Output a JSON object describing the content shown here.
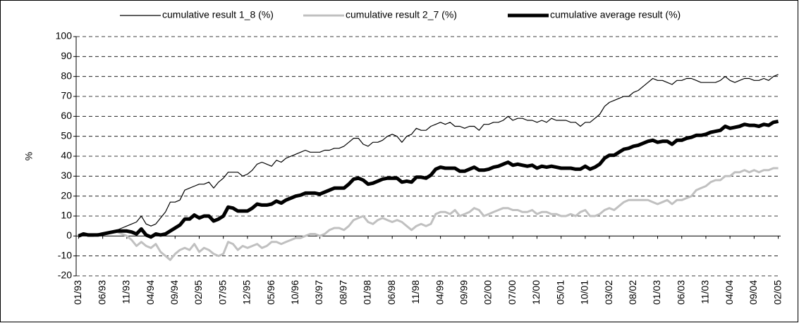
{
  "chart_data": {
    "type": "line",
    "y_label": "%",
    "categories": [
      "01/93",
      null,
      null,
      null,
      null,
      "06/93",
      null,
      null,
      null,
      null,
      "11/93",
      null,
      null,
      null,
      null,
      "04/94",
      null,
      null,
      null,
      null,
      "09/94",
      null,
      null,
      null,
      null,
      "02/95",
      null,
      null,
      null,
      null,
      "07/95",
      null,
      null,
      null,
      null,
      "12/95",
      null,
      null,
      null,
      null,
      "05/96",
      null,
      null,
      null,
      null,
      "10/96",
      null,
      null,
      null,
      null,
      "03/97",
      null,
      null,
      null,
      null,
      "08/97",
      null,
      null,
      null,
      null,
      "01/98",
      null,
      null,
      null,
      null,
      "06/98",
      null,
      null,
      null,
      null,
      "11/98",
      null,
      null,
      null,
      null,
      "04/99",
      null,
      null,
      null,
      null,
      "09/99",
      null,
      null,
      null,
      null,
      "02/00",
      null,
      null,
      null,
      null,
      "07/00",
      null,
      null,
      null,
      null,
      "12/00",
      null,
      null,
      null,
      null,
      "05/01",
      null,
      null,
      null,
      null,
      "10/01",
      null,
      null,
      null,
      null,
      "03/02",
      null,
      null,
      null,
      null,
      "08/02",
      null,
      null,
      null,
      null,
      "01/03",
      null,
      null,
      null,
      null,
      "06/03",
      null,
      null,
      null,
      null,
      "11/03",
      null,
      null,
      null,
      null,
      "04/04",
      null,
      null,
      null,
      null,
      "09/04",
      null,
      null,
      null,
      null,
      "02/05"
    ],
    "series": [
      {
        "name": "cumulative result 1_8 (%)",
        "color": "#000000",
        "line_width": 1.2,
        "values": [
          0,
          1,
          1,
          1,
          0,
          1,
          2,
          2,
          3,
          4,
          5,
          6,
          7,
          10,
          6,
          5,
          6,
          9,
          12,
          17,
          17,
          18,
          23,
          24,
          25,
          26,
          26,
          27,
          24,
          27,
          29,
          32,
          32,
          32,
          30,
          31,
          33,
          36,
          37,
          36,
          35,
          38,
          37,
          39,
          40,
          41,
          42,
          43,
          42,
          42,
          42,
          43,
          43,
          44,
          44,
          45,
          47,
          49,
          49,
          46,
          45,
          47,
          47,
          48,
          50,
          51,
          50,
          47,
          50,
          51,
          54,
          53,
          53,
          55,
          56,
          57,
          56,
          57,
          55,
          55,
          54,
          55,
          55,
          53,
          56,
          56,
          57,
          57,
          58,
          60,
          58,
          59,
          59,
          58,
          58,
          57,
          58,
          57,
          59,
          58,
          58,
          58,
          57,
          57,
          55,
          57,
          57,
          59,
          61,
          65,
          67,
          68,
          69,
          70,
          70,
          72,
          73,
          75,
          77,
          79,
          78,
          78,
          77,
          76,
          78,
          78,
          79,
          79,
          78,
          77,
          77,
          77,
          77,
          78,
          80,
          78,
          77,
          78,
          79,
          79,
          78,
          78,
          79,
          78,
          80,
          81
        ]
      },
      {
        "name": "cumulative result 2_7 (%)",
        "color": "#c0c0c0",
        "line_width": 3,
        "values": [
          0,
          1,
          0,
          0,
          1,
          1,
          1,
          2,
          2,
          1,
          0,
          -2,
          -5,
          -3,
          -5,
          -6,
          -4,
          -8,
          -10,
          -12,
          -9,
          -7,
          -6,
          -7,
          -4,
          -8,
          -6,
          -7,
          -9,
          -10,
          -9,
          -3,
          -4,
          -7,
          -5,
          -6,
          -5,
          -4,
          -6,
          -5,
          -3,
          -3,
          -4,
          -3,
          -2,
          -1,
          -1,
          0,
          1,
          1,
          0,
          1,
          3,
          4,
          4,
          3,
          5,
          8,
          9,
          10,
          7,
          6,
          8,
          9,
          8,
          7,
          8,
          7,
          5,
          3,
          5,
          6,
          5,
          6,
          11,
          12,
          12,
          11,
          13,
          10,
          11,
          12,
          14,
          13,
          10,
          11,
          12,
          13,
          14,
          14,
          13,
          13,
          12,
          12,
          13,
          11,
          12,
          12,
          11,
          11,
          10,
          10,
          11,
          10,
          12,
          13,
          10,
          10,
          11,
          13,
          14,
          13,
          15,
          17,
          18,
          18,
          18,
          18,
          18,
          17,
          16,
          17,
          18,
          16,
          18,
          18,
          19,
          20,
          23,
          24,
          25,
          27,
          28,
          28,
          30,
          30,
          32,
          32,
          33,
          32,
          33,
          32,
          33,
          33,
          34,
          34
        ]
      },
      {
        "name": "cumulative average result (%)",
        "color": "#000000",
        "line_width": 5,
        "values": [
          0,
          1,
          0.5,
          0.5,
          0.5,
          1,
          1.5,
          2,
          2.5,
          2.5,
          2.5,
          2,
          1,
          3.5,
          0.5,
          -0.5,
          1,
          0.5,
          1,
          2.5,
          4,
          5.5,
          8.5,
          8.5,
          10.5,
          9,
          10,
          10,
          7.5,
          8.5,
          10,
          14.5,
          14,
          12.5,
          12.5,
          12.5,
          14,
          16,
          15.5,
          15.5,
          16,
          17.5,
          16.5,
          18,
          19,
          20,
          20.5,
          21.5,
          21.5,
          21.5,
          21,
          22,
          23,
          24,
          24,
          24,
          26,
          28.5,
          29,
          28,
          26,
          26.5,
          27.5,
          28.5,
          29,
          29,
          29,
          27,
          27.5,
          27,
          29.5,
          29.5,
          29,
          30.5,
          33.5,
          34.5,
          34,
          34,
          34,
          32.5,
          32.5,
          33.5,
          34.5,
          33,
          33,
          33.5,
          34.5,
          35,
          36,
          37,
          35.5,
          36,
          35.5,
          35,
          35.5,
          34,
          35,
          34.5,
          35,
          34.5,
          34,
          34,
          34,
          33.5,
          33.5,
          35,
          33.5,
          34.5,
          36,
          39,
          40.5,
          40.5,
          42,
          43.5,
          44,
          45,
          45.5,
          46.5,
          47.5,
          48,
          47,
          47.5,
          47.5,
          46,
          48,
          48,
          49,
          49.5,
          50.5,
          50.5,
          51,
          52,
          52.5,
          53,
          55,
          54,
          54.5,
          55,
          56,
          55.5,
          55.5,
          55,
          56,
          55.5,
          57,
          57.5
        ]
      }
    ],
    "ylim": [
      -20,
      100
    ],
    "yticks": [
      -20,
      -10,
      0,
      10,
      20,
      30,
      40,
      50,
      60,
      70,
      80,
      90,
      100
    ],
    "grid": true,
    "legend": "top"
  }
}
